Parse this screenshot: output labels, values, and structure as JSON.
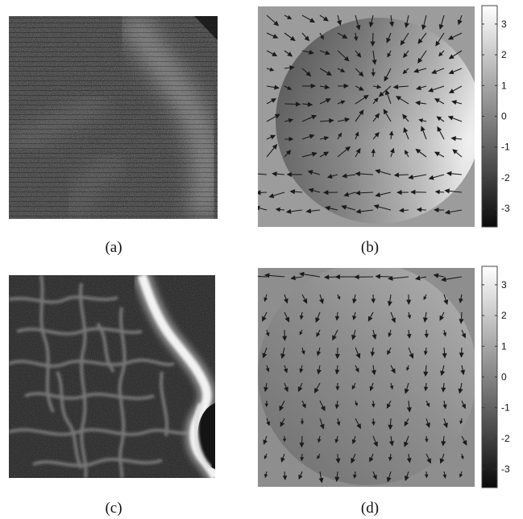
{
  "figure": {
    "panels": [
      {
        "id": "a",
        "caption": "(a)",
        "kind": "noisy-retina-image"
      },
      {
        "id": "b",
        "caption": "(b)",
        "kind": "phase-map-with-flow-arrows"
      },
      {
        "id": "c",
        "caption": "(c)",
        "kind": "averaged-retina-image"
      },
      {
        "id": "d",
        "caption": "(d)",
        "kind": "phase-map-with-flow-arrows"
      }
    ],
    "colorbar": {
      "ticks": [
        "3",
        "2",
        "1",
        "0",
        "-1",
        "-2",
        "-3"
      ],
      "range": [
        -3.6,
        3.6
      ],
      "colormap": "gray"
    }
  }
}
